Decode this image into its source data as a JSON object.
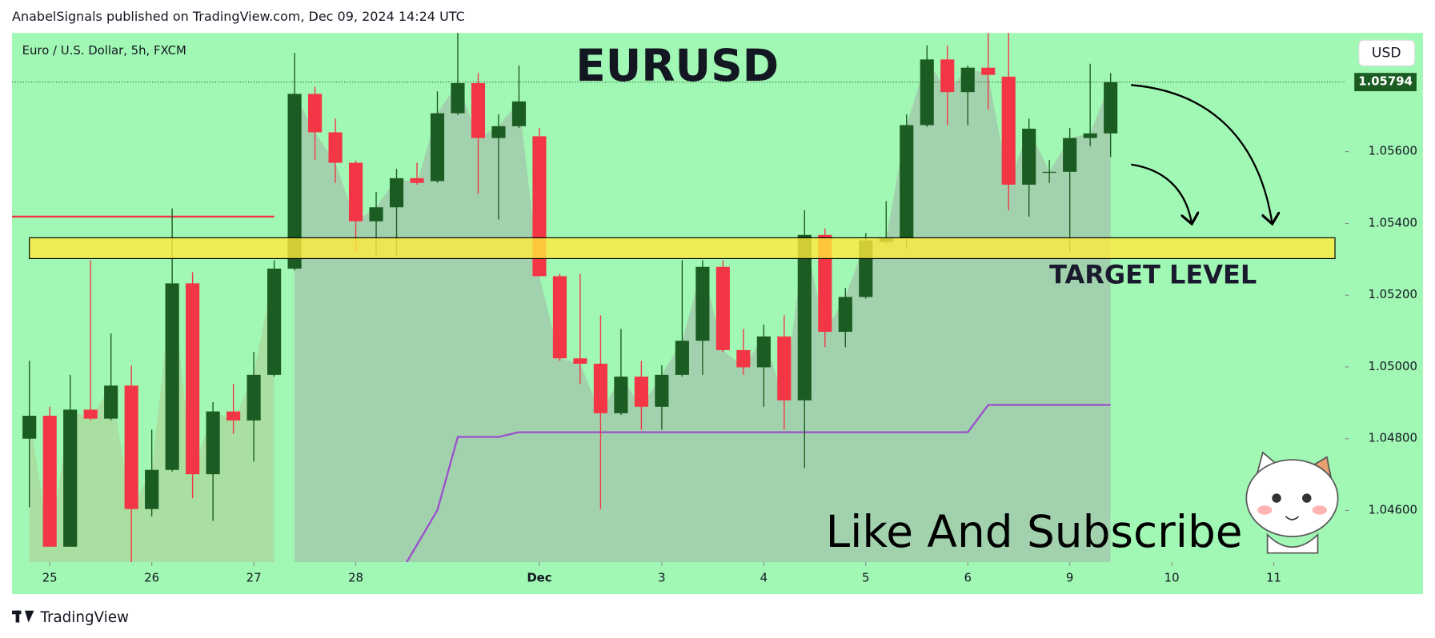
{
  "header": {
    "publisher": "AnabelSignals published on TradingView.com, Dec 09, 2024 14:24 UTC",
    "brand": "TradingView"
  },
  "chart_data": {
    "type": "candlestick",
    "title": "EURUSD",
    "symbol": "Euro / U.S. Dollar, 5h, FXCM",
    "currency": "USD",
    "x": [
      0,
      1,
      2,
      3,
      4,
      5,
      6,
      7,
      8,
      9,
      10,
      11,
      12,
      13,
      14,
      15,
      16,
      17,
      18,
      19,
      20,
      21,
      22,
      23,
      24,
      25,
      26,
      27,
      28,
      29,
      30,
      31,
      32,
      33,
      34,
      35,
      36,
      37,
      38,
      39,
      40,
      41,
      42,
      43,
      44,
      45,
      46,
      47,
      48,
      49,
      50,
      51,
      52,
      53
    ],
    "open": [
      1.048,
      1.04864,
      1.04499,
      1.04881,
      1.04856,
      1.04948,
      1.04604,
      1.04713,
      1.05233,
      1.04701,
      1.04876,
      1.04851,
      1.04978,
      1.05274,
      1.05761,
      1.05654,
      1.05569,
      1.05406,
      1.05445,
      1.05526,
      1.05518,
      1.05707,
      1.05791,
      1.05638,
      1.05671,
      1.05643,
      1.05253,
      1.05024,
      1.05009,
      1.04871,
      1.04973,
      1.04889,
      1.04978,
      1.05073,
      1.05279,
      1.05047,
      1.04999,
      1.05085,
      1.04907,
      1.05368,
      1.05098,
      1.05195,
      1.05348,
      1.0536,
      1.05674,
      1.05857,
      1.05766,
      1.05834,
      1.05809,
      1.05508,
      1.05541,
      1.05544,
      1.05638,
      1.05651
    ],
    "high": [
      1.05017,
      1.04889,
      1.04978,
      1.05297,
      1.05093,
      1.05004,
      1.04825,
      1.05442,
      1.05264,
      1.04902,
      1.04953,
      1.05042,
      1.05297,
      1.05875,
      1.05781,
      1.05692,
      1.05575,
      1.05488,
      1.05552,
      1.05569,
      1.05768,
      1.05931,
      1.05819,
      1.05704,
      1.0584,
      1.05666,
      1.05259,
      1.05259,
      1.05144,
      1.05106,
      1.05017,
      1.05004,
      1.05297,
      1.05297,
      1.05297,
      1.05106,
      1.05118,
      1.05144,
      1.05437,
      1.05386,
      1.0522,
      1.05373,
      1.05462,
      1.05704,
      1.05896,
      1.05896,
      1.0584,
      1.05931,
      1.05931,
      1.05692,
      1.05577,
      1.05666,
      1.05845,
      1.05819
    ],
    "low": [
      1.04609,
      1.04499,
      1.04499,
      1.04851,
      1.04851,
      1.04456,
      1.04583,
      1.04708,
      1.04634,
      1.04571,
      1.04813,
      1.04736,
      1.04973,
      1.05269,
      1.05577,
      1.05513,
      1.05322,
      1.0531,
      1.0531,
      1.05508,
      1.05513,
      1.05702,
      1.05483,
      1.05411,
      1.05666,
      1.05253,
      1.05017,
      1.04953,
      1.04604,
      1.04866,
      1.04825,
      1.04825,
      1.04973,
      1.04978,
      1.05042,
      1.04978,
      1.04889,
      1.04825,
      1.04718,
      1.05055,
      1.05055,
      1.0519,
      1.05343,
      1.0533,
      1.05669,
      1.05674,
      1.05674,
      1.05717,
      1.05437,
      1.05419,
      1.05513,
      1.05322,
      1.05615,
      1.05585
    ],
    "close": [
      1.04864,
      1.04499,
      1.04881,
      1.04856,
      1.04948,
      1.04604,
      1.04713,
      1.05233,
      1.04701,
      1.04876,
      1.04851,
      1.04978,
      1.05274,
      1.05761,
      1.05654,
      1.05569,
      1.05406,
      1.05445,
      1.05526,
      1.05513,
      1.05707,
      1.05791,
      1.05638,
      1.05671,
      1.0574,
      1.05253,
      1.05024,
      1.05009,
      1.04871,
      1.04973,
      1.04889,
      1.04978,
      1.05073,
      1.05279,
      1.05047,
      1.04999,
      1.05085,
      1.04907,
      1.05368,
      1.05098,
      1.05195,
      1.05353,
      1.0536,
      1.05674,
      1.05857,
      1.05766,
      1.05834,
      1.05814,
      1.05508,
      1.05664,
      1.05544,
      1.05638,
      1.05651,
      1.05794
    ],
    "up_color": "#1b5c22",
    "down_color": "#f23645",
    "xlim": [
      -0.85,
      64.5
    ],
    "xticks": [
      {
        "value": 1,
        "label": "25"
      },
      {
        "value": 6,
        "label": "26"
      },
      {
        "value": 11,
        "label": "27"
      },
      {
        "value": 16,
        "label": "28"
      },
      {
        "value": 25,
        "label": "Dec"
      },
      {
        "value": 31,
        "label": "3"
      },
      {
        "value": 36,
        "label": "4"
      },
      {
        "value": 41,
        "label": "5"
      },
      {
        "value": 46,
        "label": "6"
      },
      {
        "value": 51,
        "label": "9"
      },
      {
        "value": 56,
        "label": "10"
      },
      {
        "value": 61,
        "label": "11"
      }
    ],
    "ylim": [
      1.04456,
      1.05931
    ],
    "yticks": [
      {
        "value": 1.046,
        "label": "1.04600"
      },
      {
        "value": 1.048,
        "label": "1.04800"
      },
      {
        "value": 1.05,
        "label": "1.05000"
      },
      {
        "value": 1.052,
        "label": "1.05200"
      },
      {
        "value": 1.054,
        "label": "1.05400"
      },
      {
        "value": 1.056,
        "label": "1.05600"
      }
    ],
    "last_price": 1.05794,
    "zone": {
      "y": [
        1.05302,
        1.0536
      ],
      "x": [
        0,
        64
      ],
      "color": "#ffeb3b"
    },
    "level_line": {
      "value": 1.05419,
      "x": [
        -0.85,
        12
      ],
      "color": "#f23645"
    },
    "indicator": {
      "color": "#9c4dcc",
      "x": [
        18.5,
        20,
        21,
        23,
        24,
        46,
        47,
        53
      ],
      "values": [
        1.04456,
        1.04601,
        1.04805,
        1.04805,
        1.04818,
        1.04818,
        1.04894,
        1.04894
      ]
    },
    "annotations": {
      "target": "TARGET LEVEL",
      "cta": "Like And Subscribe"
    }
  }
}
